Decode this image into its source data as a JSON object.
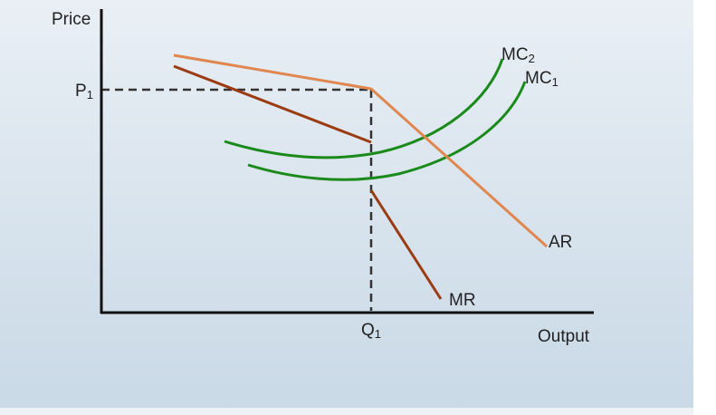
{
  "axes": {
    "y_label": "Price",
    "x_label": "Output"
  },
  "levels": {
    "price": {
      "main": "P",
      "sub": "1"
    },
    "quantity": {
      "main": "Q",
      "sub": "1"
    }
  },
  "curves": [
    {
      "main": "MC",
      "sub": "2"
    },
    {
      "main": "MC",
      "sub": "1"
    },
    {
      "main": "AR"
    },
    {
      "main": "MR"
    }
  ]
}
